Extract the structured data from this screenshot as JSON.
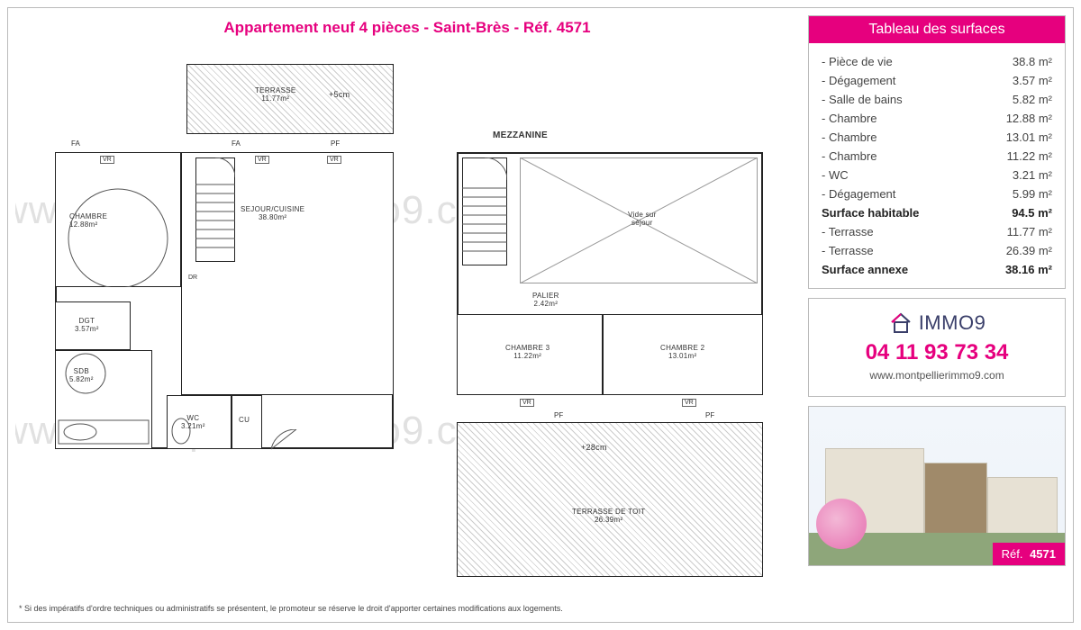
{
  "colors": {
    "accent": "#e6007e",
    "border": "#bbbbbb",
    "text": "#444444",
    "logo": "#3a3f6a"
  },
  "title": "Appartement neuf 4 pièces - Saint-Brès - Réf. 4571",
  "watermark_text": "www.montpellierimmo9.com",
  "footnote": "* Si des impératifs d'ordre techniques ou administratifs se présentent, le promoteur se réserve le droit d'apporter certaines modifications aux logements.",
  "surfaces": {
    "header": "Tableau des surfaces",
    "rows": [
      {
        "name": "Pièce de vie",
        "value": "38.8 m²",
        "total": false
      },
      {
        "name": "Dégagement",
        "value": "3.57 m²",
        "total": false
      },
      {
        "name": "Salle de bains",
        "value": "5.82 m²",
        "total": false
      },
      {
        "name": "Chambre",
        "value": "12.88 m²",
        "total": false
      },
      {
        "name": "Chambre",
        "value": "13.01 m²",
        "total": false
      },
      {
        "name": "Chambre",
        "value": "11.22 m²",
        "total": false
      },
      {
        "name": "WC",
        "value": "3.21 m²",
        "total": false
      },
      {
        "name": "Dégagement",
        "value": "5.99 m²",
        "total": false
      },
      {
        "name": "Surface habitable",
        "value": "94.5 m²",
        "total": true
      },
      {
        "name": "Terrasse",
        "value": "11.77 m²",
        "total": false
      },
      {
        "name": "Terrasse",
        "value": "26.39 m²",
        "total": false
      },
      {
        "name": "Surface annexe",
        "value": "38.16 m²",
        "total": true
      }
    ]
  },
  "contact": {
    "logo_text": "IMMO9",
    "phone": "04 11 93 73 34",
    "website": "www.montpellierimmo9.com"
  },
  "ref_badge": {
    "label": "Réf.",
    "value": "4571"
  },
  "plan": {
    "mezzanine_label": "MEZZANINE",
    "tags": {
      "fa": "FA",
      "pf": "PF",
      "vr": "VR"
    },
    "left": {
      "terrasse": {
        "label": "TERRASSE",
        "area": "11.77m²",
        "note": "+5cm"
      },
      "chambre1": {
        "label": "CHAMBRE",
        "area": "12.88m²"
      },
      "sejour": {
        "label": "SEJOUR/CUISINE",
        "area": "38.80m²"
      },
      "dgt": {
        "label": "DGT",
        "area": "3.57m²"
      },
      "sdb": {
        "label": "SDB",
        "area": "5.82m²"
      },
      "wc": {
        "label": "WC",
        "area": "3.21m²"
      },
      "cu": {
        "label": "CU"
      },
      "dr": {
        "label": "DR"
      }
    },
    "right": {
      "vide": {
        "label": "Vide sur",
        "sub": "séjour"
      },
      "palier": {
        "label": "PALIER",
        "area": "2.42m²"
      },
      "chambre3": {
        "label": "CHAMBRE 3",
        "area": "11.22m²"
      },
      "chambre2": {
        "label": "CHAMBRE 2",
        "area": "13.01m²"
      },
      "terrasse_toit": {
        "label": "TERRASSE DE TOIT",
        "area": "26.39m²",
        "note": "+28cm"
      }
    }
  }
}
